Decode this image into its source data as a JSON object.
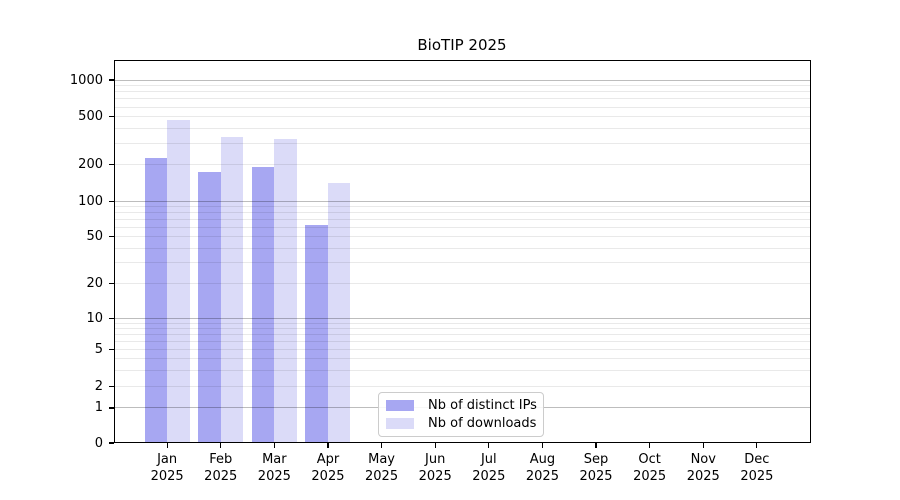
{
  "chart_data": {
    "type": "bar",
    "title": "BioTIP 2025",
    "yscale": "log-like (symlog with 0 baseline)",
    "grid": true,
    "legend_position": "inside plot, lower center",
    "background": "#ffffff",
    "categories": [
      {
        "month": "Jan",
        "year": "2025"
      },
      {
        "month": "Feb",
        "year": "2025"
      },
      {
        "month": "Mar",
        "year": "2025"
      },
      {
        "month": "Apr",
        "year": "2025"
      },
      {
        "month": "May",
        "year": "2025"
      },
      {
        "month": "Jun",
        "year": "2025"
      },
      {
        "month": "Jul",
        "year": "2025"
      },
      {
        "month": "Aug",
        "year": "2025"
      },
      {
        "month": "Sep",
        "year": "2025"
      },
      {
        "month": "Oct",
        "year": "2025"
      },
      {
        "month": "Nov",
        "year": "2025"
      },
      {
        "month": "Dec",
        "year": "2025"
      }
    ],
    "yticks": [
      1000,
      500,
      200,
      100,
      50,
      20,
      10,
      5,
      2,
      1,
      0
    ],
    "series": [
      {
        "name": "Nb of distinct IPs",
        "color": "#a7a7f2",
        "values": [
          225,
          174,
          190,
          63,
          null,
          null,
          null,
          null,
          null,
          null,
          null,
          null
        ]
      },
      {
        "name": "Nb of downloads",
        "color": "#dbdbf8",
        "values": [
          470,
          340,
          325,
          142,
          null,
          null,
          null,
          null,
          null,
          null,
          null,
          null
        ]
      }
    ]
  }
}
